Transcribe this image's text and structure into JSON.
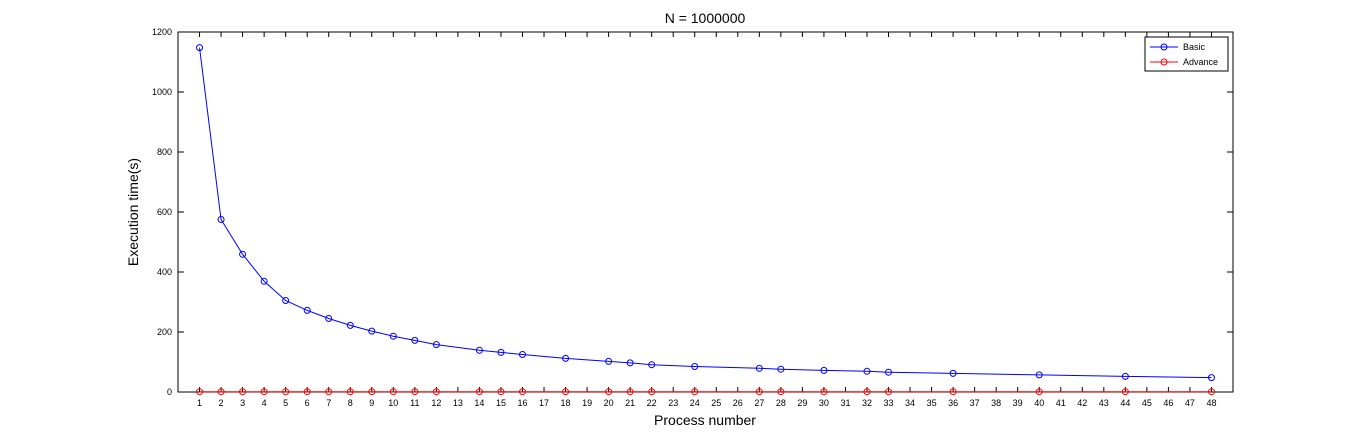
{
  "chart_data": {
    "type": "line",
    "title": "N = 1000000",
    "xlabel": "Process number",
    "ylabel": "Execution time(s)",
    "xlim": [
      0,
      49
    ],
    "ylim": [
      0,
      1200
    ],
    "xticks": [
      1,
      2,
      3,
      4,
      5,
      6,
      7,
      8,
      9,
      10,
      11,
      12,
      13,
      14,
      15,
      16,
      17,
      18,
      19,
      20,
      21,
      22,
      23,
      24,
      25,
      26,
      27,
      28,
      29,
      30,
      31,
      32,
      33,
      34,
      35,
      36,
      37,
      38,
      39,
      40,
      41,
      42,
      43,
      44,
      45,
      46,
      47,
      48
    ],
    "yticks": [
      0,
      200,
      400,
      600,
      800,
      1000,
      1200
    ],
    "grid": false,
    "legend_position": "top-right",
    "x": [
      1,
      2,
      3,
      4,
      5,
      6,
      7,
      8,
      9,
      10,
      11,
      12,
      14,
      15,
      16,
      18,
      20,
      21,
      22,
      24,
      27,
      28,
      30,
      32,
      33,
      36,
      40,
      44,
      48
    ],
    "series": [
      {
        "name": "Basic",
        "color": "#0000ff",
        "values": [
          1148,
          575,
          459,
          369,
          305,
          272,
          245,
          222,
          203,
          186,
          172,
          158,
          139,
          132,
          125,
          112,
          102,
          97,
          91,
          85,
          79,
          76,
          72,
          69,
          66,
          62,
          57,
          52,
          48
        ]
      },
      {
        "name": "Advance",
        "color": "#ff0000",
        "values": [
          1,
          1,
          1,
          1,
          1,
          1,
          1,
          1,
          1,
          1,
          1,
          1,
          1,
          1,
          1,
          1,
          1,
          1,
          1,
          1,
          1,
          1,
          1,
          1,
          1,
          1,
          1,
          1,
          1
        ]
      }
    ]
  }
}
